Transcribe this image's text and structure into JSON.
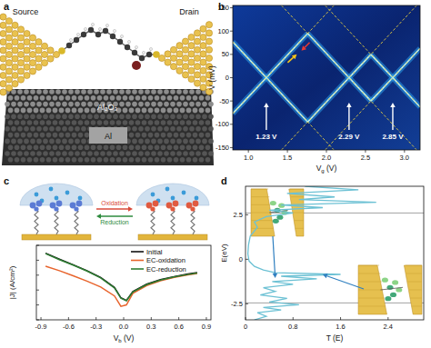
{
  "panel_labels": [
    "a",
    "b",
    "c",
    "d"
  ],
  "diagram_a": {
    "source": "Source",
    "drain": "Drain",
    "layer": "Al₂O₃",
    "base": "Al"
  },
  "diagram_c": {
    "oxidation": "Oxidation",
    "reduction": "Reduction"
  },
  "chart_data": [
    {
      "type": "stability_diagram",
      "xlabel": {
        "text": "V",
        "sub": "g",
        "unit": " (V)"
      },
      "ylabel": "V (mV)",
      "xlim": [
        0.8,
        3.2
      ],
      "ylim": [
        -155,
        155
      ],
      "xticks": [
        {
          "value": 1,
          "label": "1.0"
        },
        1.5,
        {
          "value": 2,
          "label": "2.0"
        },
        2.5,
        {
          "value": 3,
          "label": "3.0"
        }
      ],
      "yticks": [
        -150,
        -100,
        -50,
        0,
        50,
        100,
        150
      ],
      "edges": [
        {
          "x1": 1.23,
          "y1": 0,
          "x2": 1.76,
          "y2": 95
        },
        {
          "x1": 1.76,
          "y1": 95,
          "x2": 2.29,
          "y2": 0
        },
        {
          "x1": 1.23,
          "y1": 0,
          "x2": 1.76,
          "y2": -95
        },
        {
          "x1": 1.76,
          "y1": -95,
          "x2": 2.29,
          "y2": 0
        },
        {
          "x1": 2.29,
          "y1": 0,
          "x2": 2.57,
          "y2": 50
        },
        {
          "x1": 2.57,
          "y1": 50,
          "x2": 2.85,
          "y2": 0
        },
        {
          "x1": 2.29,
          "y1": 0,
          "x2": 2.57,
          "y2": -50
        },
        {
          "x1": 2.57,
          "y1": -50,
          "x2": 2.85,
          "y2": 0
        },
        {
          "x1": 2.85,
          "y1": 0,
          "x2": 3.2,
          "y2": 63
        },
        {
          "x1": 2.85,
          "y1": 0,
          "x2": 3.2,
          "y2": -63
        },
        {
          "x1": 1.23,
          "y1": 0,
          "x2": 0.8,
          "y2": 77
        },
        {
          "x1": 1.23,
          "y1": 0,
          "x2": 0.8,
          "y2": -77
        }
      ],
      "guides": [
        {
          "x1": 0.364,
          "y1": -155,
          "x2": 2.096,
          "y2": 155
        },
        {
          "x1": 0.364,
          "y1": 155,
          "x2": 2.096,
          "y2": -155
        },
        {
          "x1": 1.424,
          "y1": -155,
          "x2": 3.156,
          "y2": 155
        },
        {
          "x1": 1.424,
          "y1": 155,
          "x2": 3.156,
          "y2": -155
        },
        {
          "x1": 1.984,
          "y1": -155,
          "x2": 3.716,
          "y2": 155
        },
        {
          "x1": 1.984,
          "y1": 155,
          "x2": 3.716,
          "y2": -155
        }
      ],
      "markers": [
        {
          "x": 1.68,
          "y": 58,
          "color": "#e53935"
        },
        {
          "x": 1.62,
          "y": 50,
          "color": "#f5c518"
        }
      ],
      "annotations": [
        {
          "text": "1.23 V",
          "x": 1.23
        },
        {
          "text": "2.29 V",
          "x": 2.29
        },
        {
          "text": "2.85 V",
          "x": 2.85
        }
      ]
    },
    {
      "type": "line",
      "xlabel": {
        "text": "V",
        "sub": "b",
        "unit": " (V)"
      },
      "ylabel": "|J| (A/cm²)",
      "log": "y",
      "tick_labels": "x",
      "legend": "upper right",
      "xlim": [
        -0.95,
        0.95
      ],
      "ylim": [
        1e-06,
        0.1
      ],
      "xticks": [
        -0.9,
        -0.6,
        -0.3,
        {
          "value": 0,
          "label": "0.0"
        },
        0.3,
        0.6,
        0.9
      ],
      "yticks": [
        1e-06,
        1e-05,
        0.0001,
        0.001,
        0.01,
        0.1
      ],
      "x": [
        -0.85,
        -0.7,
        -0.55,
        -0.4,
        -0.25,
        -0.1,
        -0.03,
        0.03,
        0.1,
        0.25,
        0.4,
        0.55,
        0.7,
        0.8
      ],
      "series": [
        {
          "name": "Initial",
          "color": "#111111",
          "values": [
            0.03,
            0.012,
            0.005,
            0.002,
            0.0007,
            0.00015,
            3e-05,
            2e-05,
            8e-05,
            0.00025,
            0.0005,
            0.0008,
            0.0012,
            0.0015
          ]
        },
        {
          "name": "EC-oxidation",
          "color": "#e8642c",
          "values": [
            0.004,
            0.002,
            0.0009,
            0.0004,
            0.00016,
            4e-05,
            8e-06,
            1e-05,
            6e-05,
            0.0002,
            0.00042,
            0.0007,
            0.00105,
            0.0013
          ]
        },
        {
          "name": "EC-reduction",
          "color": "#2e7d32",
          "values": [
            0.028,
            0.011,
            0.0047,
            0.0019,
            0.00065,
            0.00014,
            2.8e-05,
            1.9e-05,
            7.5e-05,
            0.00023,
            0.00046,
            0.00075,
            0.0011,
            0.0014
          ]
        }
      ]
    },
    {
      "type": "line",
      "xlabel": "T (E)",
      "ylabel": "E(eV)",
      "xlim": [
        0,
        3
      ],
      "ylim": [
        -3.4,
        4.1
      ],
      "xticks": [
        0,
        0.8,
        1.6,
        2.4
      ],
      "yticks": [
        -2.5,
        0,
        2.5
      ],
      "color": "#6cc1d4",
      "x": [
        0.15,
        0.35,
        0.2,
        0.6,
        0.3,
        0.9,
        0.4,
        0.7,
        0.25,
        0.5,
        0.3,
        0.8,
        0.45,
        1.2,
        0.6,
        1.6,
        0.5,
        0.3,
        0.15,
        0.06,
        0.04,
        0.05,
        0.08,
        0.2,
        0.15,
        0.35,
        0.8,
        0.4,
        1.3,
        0.6,
        2.2,
        0.9,
        1.5,
        0.7,
        1.9,
        1.0
      ],
      "values": [
        -3.4,
        -3.2,
        -3.0,
        -2.85,
        -2.7,
        -2.55,
        -2.4,
        -2.2,
        -2.0,
        -1.8,
        -1.6,
        -1.4,
        -1.25,
        -1.1,
        -0.95,
        -0.85,
        -0.75,
        -0.6,
        -0.4,
        -0.1,
        0.3,
        0.8,
        1.3,
        1.8,
        2.1,
        2.4,
        2.6,
        2.75,
        2.9,
        3.05,
        3.2,
        3.35,
        3.5,
        3.7,
        3.9,
        4.1
      ],
      "levels": [
        2.6,
        -2.45
      ],
      "arrows": [
        {
          "x": 0.5,
          "y": -1.05
        },
        {
          "x": 1.3,
          "y": -0.85
        }
      ]
    }
  ]
}
